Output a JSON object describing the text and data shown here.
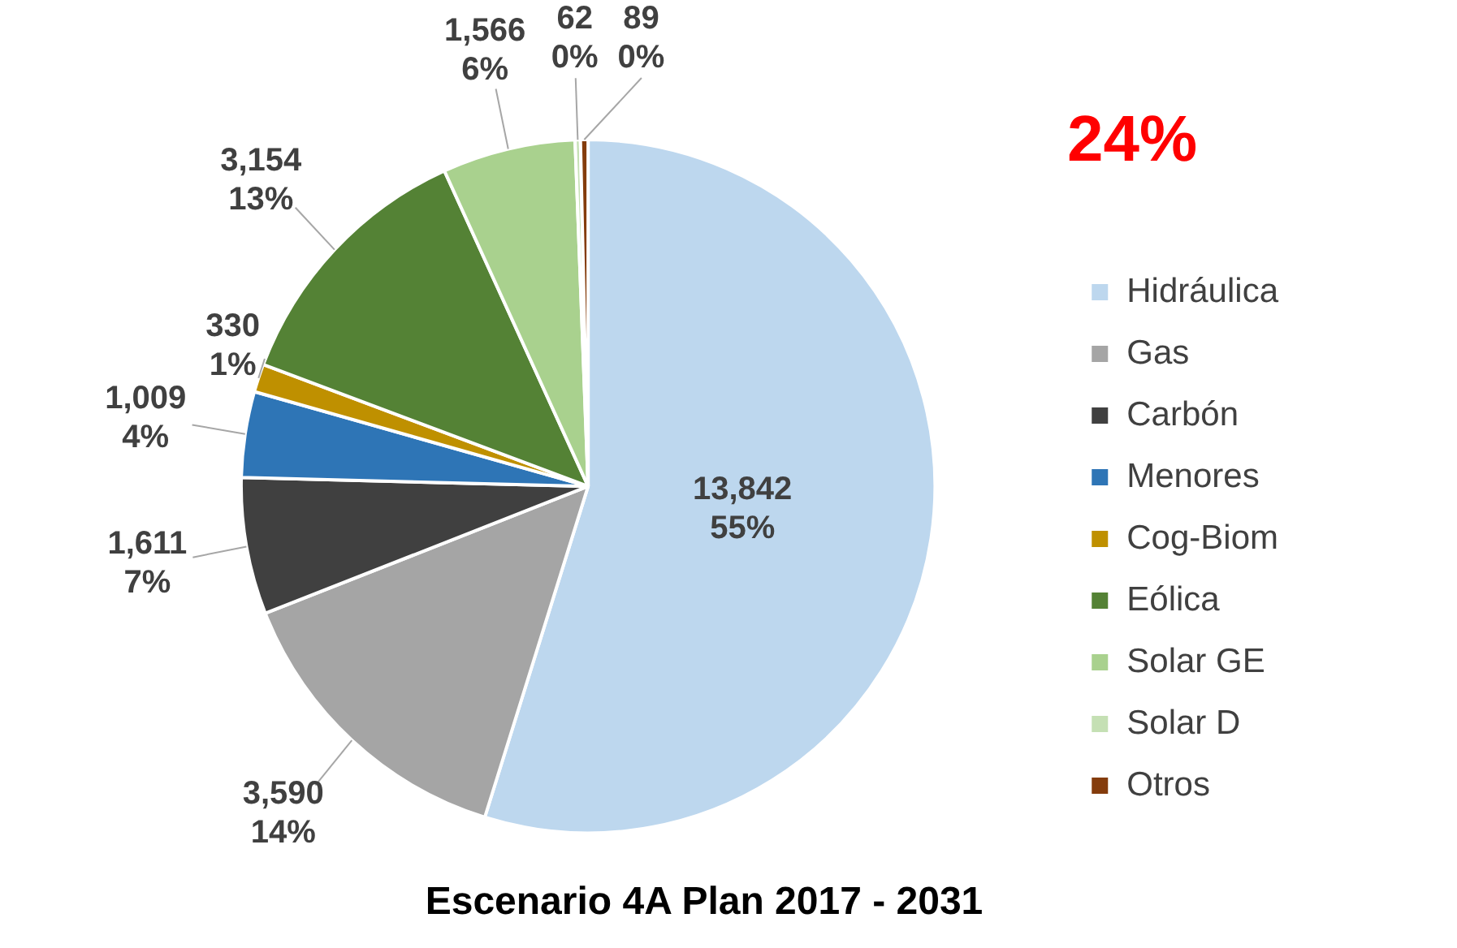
{
  "chart_data": {
    "type": "pie",
    "title": "Escenario 4A Plan 2017 - 2031",
    "categories": [
      "Hidráulica",
      "Gas",
      "Carbón",
      "Menores",
      "Cog-Biom",
      "Eólica",
      "Solar GE",
      "Solar D",
      "Otros"
    ],
    "values": [
      13842,
      3590,
      1611,
      1009,
      330,
      3154,
      1566,
      62,
      89
    ],
    "colors": [
      "#bdd7ee",
      "#a5a5a5",
      "#404040",
      "#2e75b6",
      "#bf9000",
      "#548235",
      "#a9d18e",
      "#c5e0b4",
      "#843c0c"
    ],
    "value_labels": [
      "13,842\n55%",
      "3,590\n14%",
      "1,611\n7%",
      "1,009\n4%",
      "330\n1%",
      "3,154\n13%",
      "1,566\n6%",
      "62\n0%",
      "89\n0%"
    ],
    "annotations": [
      "24%"
    ],
    "legend": "right"
  }
}
